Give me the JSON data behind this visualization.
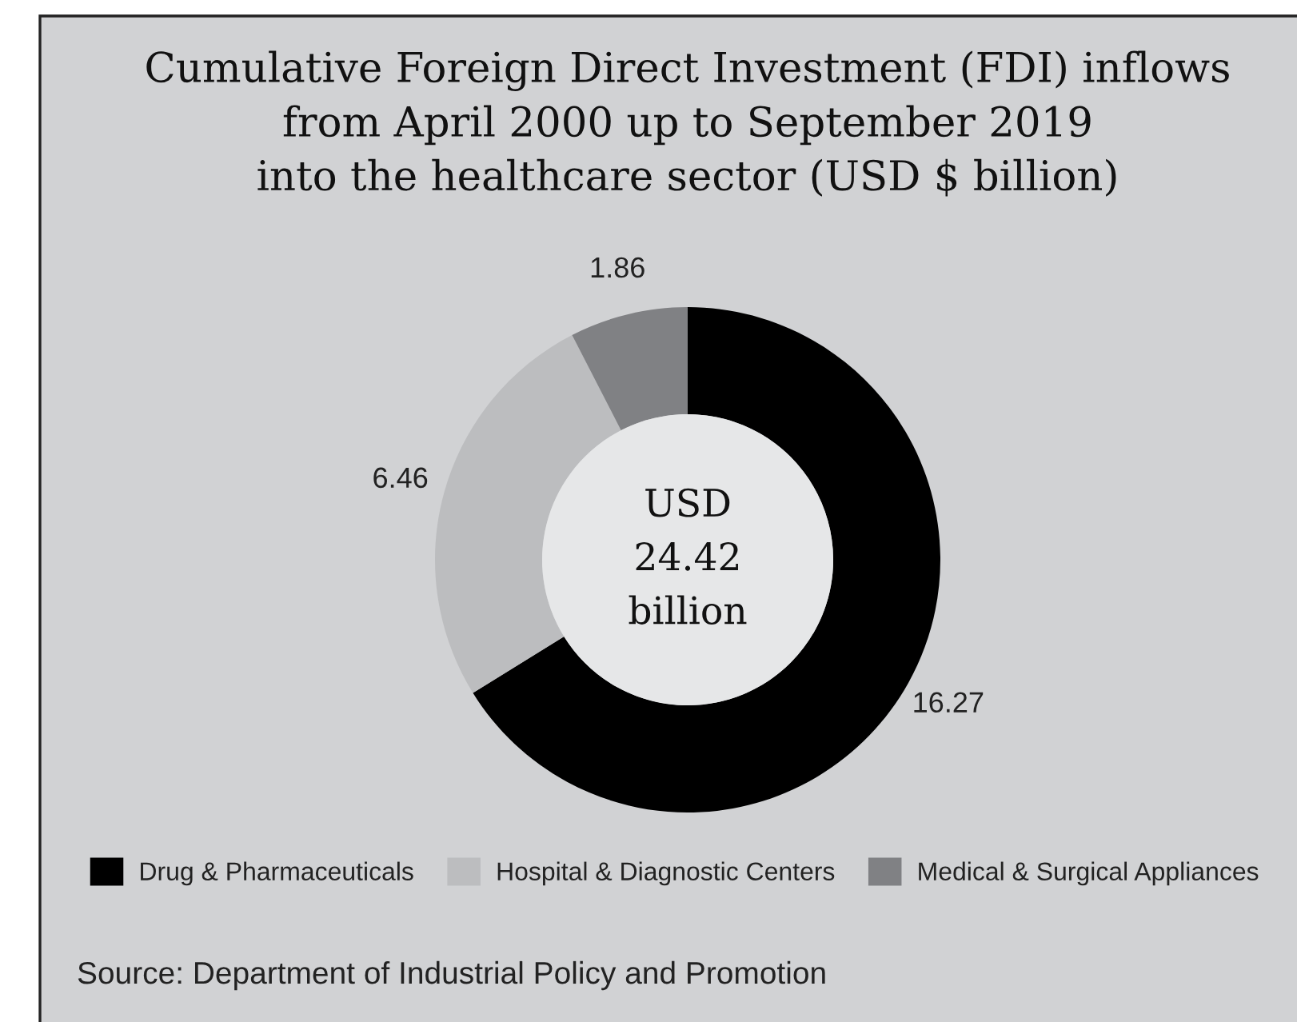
{
  "chart_data": {
    "type": "donut",
    "title": "Cumulative Foreign Direct Investment (FDI) inflows\nfrom April 2000 up to September 2019\ninto the healthcare sector (USD $ billion)",
    "categories": [
      "Drug & Pharmaceuticals",
      "Hospital & Diagnostic Centers",
      "Medical & Surgical Appliances"
    ],
    "values": [
      16.27,
      6.46,
      1.86
    ],
    "colors": [
      "#000000",
      "#bcbdbf",
      "#808184"
    ],
    "data_labels": true,
    "legend": "bottom",
    "annotations": [
      "USD\n24.42\nbillion",
      "Source: Department of Industrial Policy and Promotion"
    ]
  }
}
